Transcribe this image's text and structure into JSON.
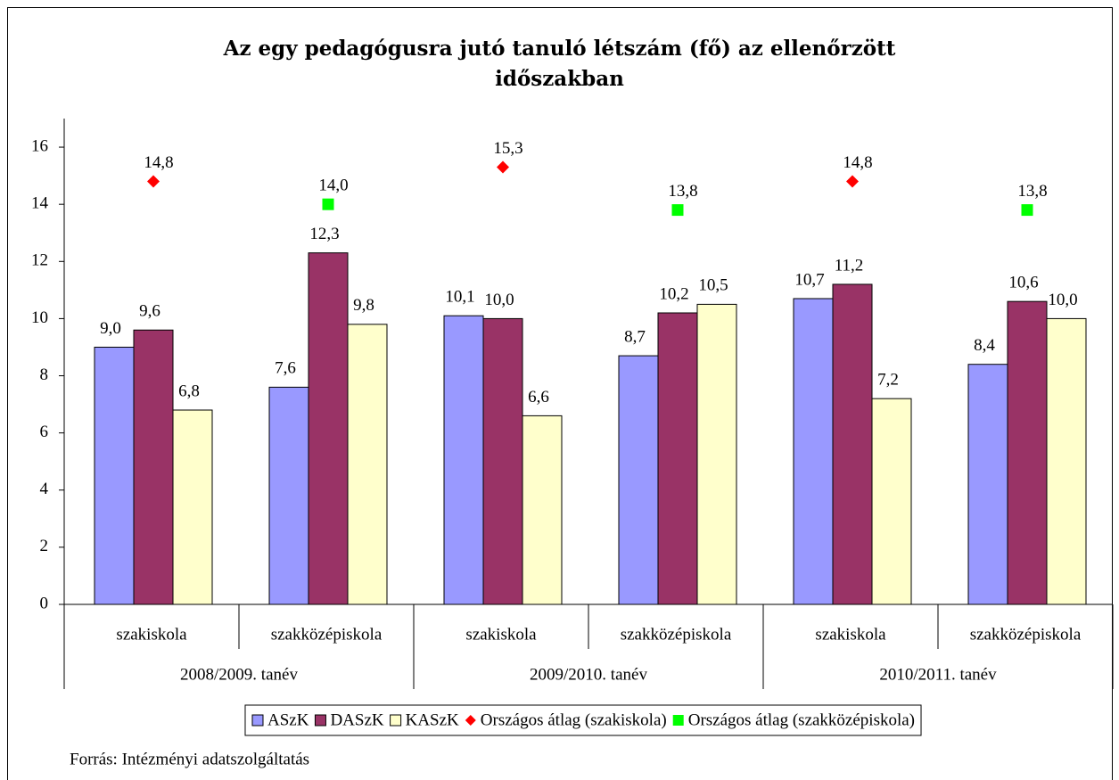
{
  "chart_data": {
    "type": "bar",
    "title": "Az egy pedagógusra jutó tanuló létszám (fő) az ellenőrzött időszakban",
    "categories": [
      "szakiskola",
      "szakközépiskola",
      "szakiskola",
      "szakközépiskola",
      "szakiskola",
      "szakközépiskola"
    ],
    "groups": [
      "2008/2009. tanév",
      "2009/2010. tanév",
      "2010/2011. tanév"
    ],
    "series": [
      {
        "name": "ASzK",
        "color": "#9999ff",
        "kind": "bar",
        "values": [
          9.0,
          7.6,
          10.1,
          8.7,
          10.7,
          8.4
        ],
        "value_labels": [
          "9,0",
          "7,6",
          "10,1",
          "8,7",
          "10,7",
          "8,4"
        ]
      },
      {
        "name": "DASzK",
        "color": "#993366",
        "kind": "bar",
        "values": [
          9.6,
          12.3,
          10.0,
          10.2,
          11.2,
          10.6
        ],
        "value_labels": [
          "9,6",
          "12,3",
          "10,0",
          "10,2",
          "11,2",
          "10,6"
        ]
      },
      {
        "name": "KASzK",
        "color": "#ffffcc",
        "kind": "bar",
        "values": [
          6.8,
          9.8,
          6.6,
          10.5,
          7.2,
          10.0
        ],
        "value_labels": [
          "6,8",
          "9,8",
          "6,6",
          "10,5",
          "7,2",
          "10,0"
        ]
      },
      {
        "name": "Országos átlag (szakiskola)",
        "color": "#ff0000",
        "kind": "diamond",
        "values": [
          14.8,
          null,
          15.3,
          null,
          14.8,
          null
        ],
        "value_labels": [
          "14,8",
          null,
          "15,3",
          null,
          "14,8",
          null
        ]
      },
      {
        "name": "Országos átlag (szakközépiskola)",
        "color": "#00ff00",
        "kind": "square",
        "values": [
          null,
          14.0,
          null,
          13.8,
          null,
          13.8
        ],
        "value_labels": [
          null,
          "14,0",
          null,
          "13,8",
          null,
          "13,8"
        ]
      }
    ],
    "ylim": [
      0,
      17
    ],
    "yticks": [
      0,
      2,
      4,
      6,
      8,
      10,
      12,
      14,
      16
    ],
    "legend": "bottom",
    "source": "Forrás: Intézményi adatszolgáltatás"
  }
}
